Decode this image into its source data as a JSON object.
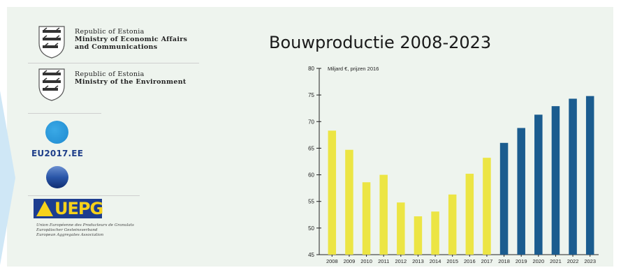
{
  "logos": {
    "ministry1": {
      "line1": "Republic of Estonia",
      "line2": "Ministry of Economic Affairs",
      "line3": "and Communications"
    },
    "ministry2": {
      "line1": "Republic of Estonia",
      "line2": "Ministry of the Environment"
    },
    "eu_presidency": "EU2017.EE",
    "uepg": {
      "name": "UEPG",
      "sub": "Union Européenne des Producteurs de Granulats\nEuropäischer Gesteinsverband\nEuropean Aggregates Association"
    }
  },
  "colors": {
    "historic": "#ece544",
    "forecast": "#1b5c8f",
    "panel": "#eef4ee"
  },
  "chart_data": {
    "type": "bar",
    "title": "Bouwproductie 2008-2023",
    "ylabel": "Miljard €, prijzen 2016",
    "xlabel": "",
    "ylim": [
      45,
      80
    ],
    "yticks": [
      45,
      50,
      55,
      60,
      65,
      70,
      75,
      80
    ],
    "grid": false,
    "categories": [
      "2008",
      "2009",
      "2010",
      "2011",
      "2012",
      "2013",
      "2014",
      "2015",
      "2016",
      "2017",
      "2018",
      "2019",
      "2020",
      "2021",
      "2022",
      "2023"
    ],
    "values": [
      68.3,
      64.7,
      58.6,
      60.0,
      54.8,
      52.2,
      53.1,
      56.3,
      60.2,
      63.2,
      66.0,
      68.8,
      71.3,
      72.9,
      74.3,
      74.8
    ],
    "bar_colors": [
      "historic",
      "historic",
      "historic",
      "historic",
      "historic",
      "historic",
      "historic",
      "historic",
      "historic",
      "historic",
      "forecast",
      "forecast",
      "forecast",
      "forecast",
      "forecast",
      "forecast"
    ]
  }
}
